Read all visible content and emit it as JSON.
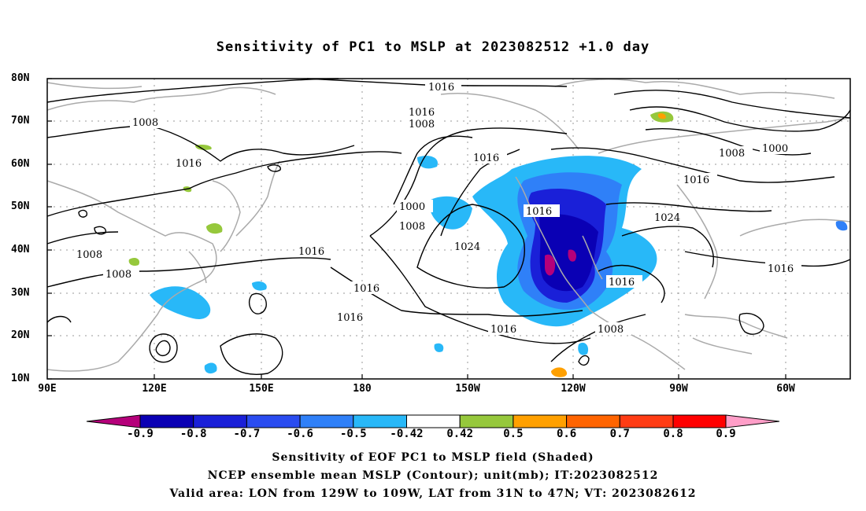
{
  "title": "Sensitivity of PC1 to MSLP at 2023082512 +1.0 day",
  "lat_labels": [
    "80N",
    "70N",
    "60N",
    "50N",
    "40N",
    "30N",
    "20N",
    "10N"
  ],
  "lon_labels": [
    "90E",
    "120E",
    "150E",
    "180",
    "150W",
    "120W",
    "90W",
    "60W"
  ],
  "contour_labels": [
    "1016",
    "1016",
    "1008",
    "1008",
    "1016",
    "1016",
    "1008",
    "1000",
    "1016",
    "1016",
    "1000",
    "1008",
    "1024",
    "1016",
    "1008",
    "1008",
    "1016",
    "1016",
    "1016",
    "1024",
    "1016",
    "1016",
    "1008"
  ],
  "colorbar": {
    "labels": [
      "-0.9",
      "-0.8",
      "-0.7",
      "-0.6",
      "-0.5",
      "-0.42",
      "0.42",
      "0.5",
      "0.6",
      "0.7",
      "0.8",
      "0.9"
    ],
    "colors": [
      "#b5007a",
      "#0a00b4",
      "#1a20d8",
      "#2a4cf0",
      "#2f80f8",
      "#28b8f8",
      "#ffffff",
      "#96c83c",
      "#ffa000",
      "#ff6400",
      "#ff3c14",
      "#ff0000",
      "#ff9ec8"
    ]
  },
  "captions": {
    "line1": "Sensitivity of EOF PC1 to MSLP field (Shaded)",
    "line2": "NCEP ensemble mean MSLP (Contour); unit(mb); IT:2023082512",
    "line3": "Valid area: LON from 129W to 109W, LAT from 31N to 47N; VT: 2023082612"
  }
}
